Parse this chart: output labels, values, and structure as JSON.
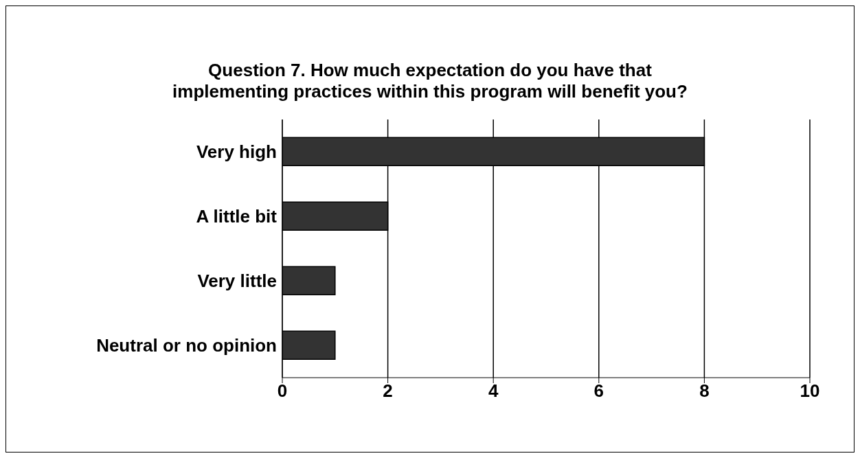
{
  "chart_data": {
    "type": "bar",
    "orientation": "horizontal",
    "title": "Question 7. How much expectation do you have that implementing practices within this program will benefit you?",
    "categories": [
      "Very high",
      "A little bit",
      "Very little",
      "Neutral or no opinion"
    ],
    "values": [
      8,
      2,
      1,
      1
    ],
    "color": "#333333",
    "xlim": [
      0,
      10
    ],
    "xticks": [
      0,
      2,
      4,
      6,
      8,
      10
    ],
    "grid": "x"
  }
}
